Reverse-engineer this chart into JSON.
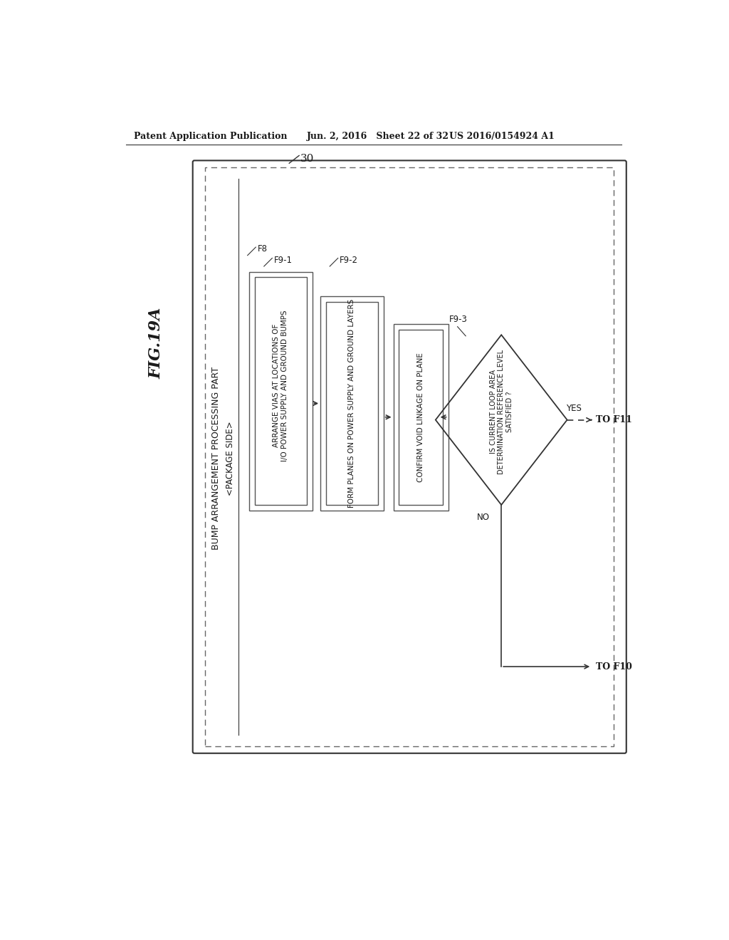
{
  "background_color": "#ffffff",
  "page_header_left": "Patent Application Publication",
  "page_header_mid": "Jun. 2, 2016   Sheet 22 of 32",
  "page_header_right": "US 2016/0154924 A1",
  "fig_label": "FIG.19A",
  "outer_box_label": "30",
  "outer_title": "BUMP ARRANGEMENT PROCESSING PART",
  "inner_title": "<PACKAGE SIDE>",
  "box1_label": "F8",
  "box1_inner_label": "F9-1",
  "box1_text_line1": "ARRANGE VIAS AT LOCATIONS OF",
  "box1_text_line2": "I/O POWER SUPPLY AND GROUND BUMPS",
  "box2_label": "F9-2",
  "box2_text": "FORM PLANES ON POWER SUPPLY AND GROUND LAYERS",
  "box3_text": "CONFIRM VOID LINKAGE ON PLANE",
  "diamond_label": "F9-3",
  "diamond_text_line1": "IS CURRENT LOOP AREA",
  "diamond_text_line2": "DETERMINATION REFERENCE LEVEL",
  "diamond_text_line3": "SATISFIED ?",
  "yes_label": "YES",
  "no_label": "NO",
  "to_f11_label": "TO F11",
  "to_f10_label": "TO F10",
  "edge_color": "#333333",
  "text_color": "#1a1a1a"
}
